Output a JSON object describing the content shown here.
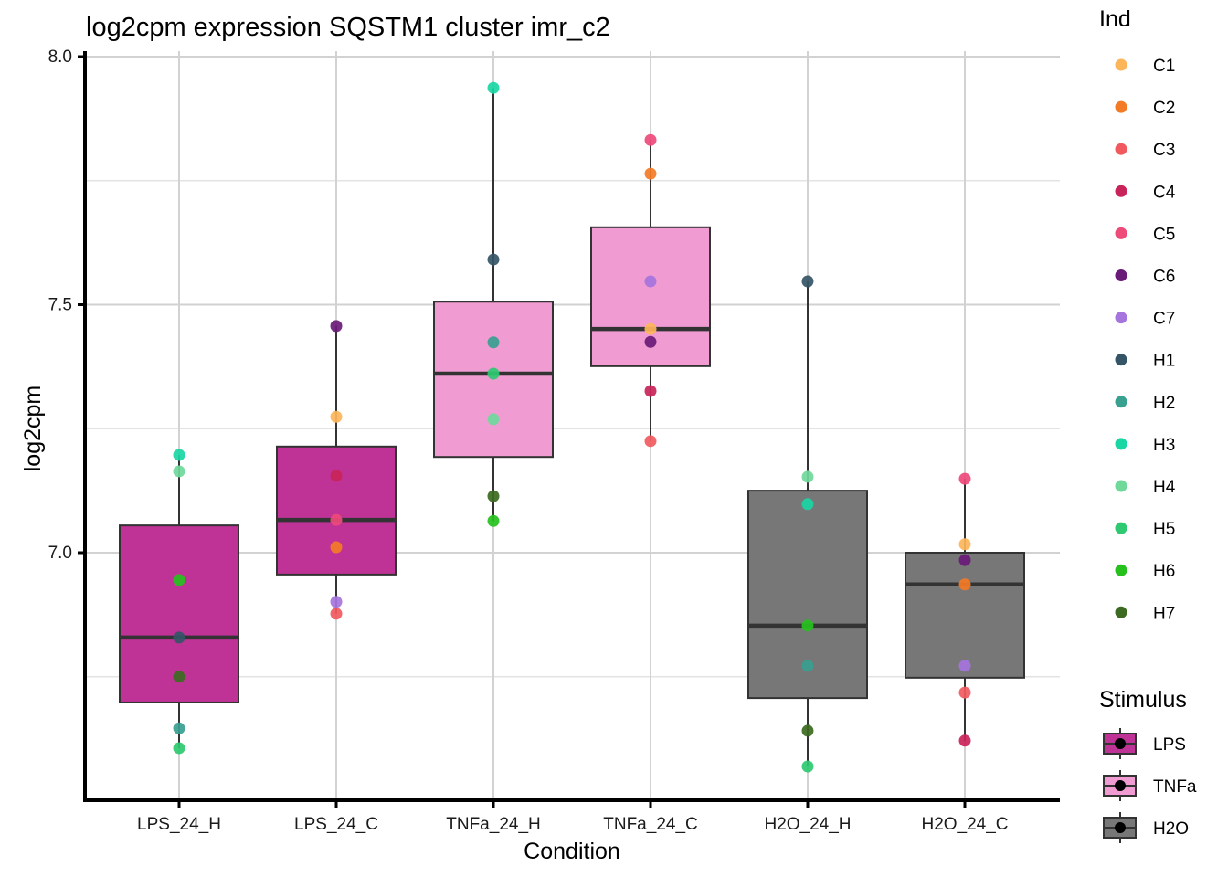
{
  "chart_data": {
    "type": "box",
    "title": "log2cpm expression SQSTM1 cluster imr_c2",
    "xlabel": "Condition",
    "ylabel": "log2cpm",
    "ylim": [
      6.5,
      8.0
    ],
    "yticks": [
      7.0,
      7.5,
      8.0
    ],
    "ytick_labels": [
      "7.0",
      "7.5",
      "8.0"
    ],
    "grid": true,
    "categories": [
      "LPS_24_H",
      "LPS_24_C",
      "TNFa_24_H",
      "TNFa_24_C",
      "H2O_24_H",
      "H2O_24_C"
    ],
    "category_stimulus": [
      "LPS",
      "LPS",
      "TNFa",
      "TNFa",
      "H2O",
      "H2O"
    ],
    "boxes": [
      {
        "category": "LPS_24_H",
        "min": 6.606,
        "q1": 6.698,
        "median": 6.829,
        "q3": 7.055,
        "max": 7.197
      },
      {
        "category": "LPS_24_C",
        "min": 6.877,
        "q1": 6.956,
        "median": 7.066,
        "q3": 7.214,
        "max": 7.457
      },
      {
        "category": "TNFa_24_H",
        "min": 7.064,
        "q1": 7.193,
        "median": 7.361,
        "q3": 7.506,
        "max": 7.937
      },
      {
        "category": "TNFa_24_C",
        "min": 7.225,
        "q1": 7.376,
        "median": 7.451,
        "q3": 7.656,
        "max": 7.832
      },
      {
        "category": "H2O_24_H",
        "min": 6.569,
        "q1": 6.707,
        "median": 6.853,
        "q3": 7.125,
        "max": 7.547
      },
      {
        "category": "H2O_24_C",
        "min": 6.621,
        "q1": 6.748,
        "median": 6.936,
        "q3": 7.0,
        "max": 7.149
      }
    ],
    "points": [
      {
        "category": "LPS_24_H",
        "ind": "H3",
        "value": 7.197
      },
      {
        "category": "LPS_24_H",
        "ind": "H4",
        "value": 7.164
      },
      {
        "category": "LPS_24_H",
        "ind": "H6",
        "value": 6.945
      },
      {
        "category": "LPS_24_H",
        "ind": "H1",
        "value": 6.829
      },
      {
        "category": "LPS_24_H",
        "ind": "H7",
        "value": 6.75
      },
      {
        "category": "LPS_24_H",
        "ind": "H2",
        "value": 6.646
      },
      {
        "category": "LPS_24_H",
        "ind": "H5",
        "value": 6.606
      },
      {
        "category": "LPS_24_C",
        "ind": "C6",
        "value": 7.457
      },
      {
        "category": "LPS_24_C",
        "ind": "C1",
        "value": 7.274
      },
      {
        "category": "LPS_24_C",
        "ind": "C4",
        "value": 7.155
      },
      {
        "category": "LPS_24_C",
        "ind": "C5",
        "value": 7.066
      },
      {
        "category": "LPS_24_C",
        "ind": "C2",
        "value": 7.011
      },
      {
        "category": "LPS_24_C",
        "ind": "C7",
        "value": 6.901
      },
      {
        "category": "LPS_24_C",
        "ind": "C3",
        "value": 6.877
      },
      {
        "category": "TNFa_24_H",
        "ind": "H3",
        "value": 7.937
      },
      {
        "category": "TNFa_24_H",
        "ind": "H1",
        "value": 7.591
      },
      {
        "category": "TNFa_24_H",
        "ind": "H2",
        "value": 7.424
      },
      {
        "category": "TNFa_24_H",
        "ind": "H5",
        "value": 7.361
      },
      {
        "category": "TNFa_24_H",
        "ind": "H4",
        "value": 7.269
      },
      {
        "category": "TNFa_24_H",
        "ind": "H7",
        "value": 7.114
      },
      {
        "category": "TNFa_24_H",
        "ind": "H6",
        "value": 7.064
      },
      {
        "category": "TNFa_24_C",
        "ind": "C5",
        "value": 7.832
      },
      {
        "category": "TNFa_24_C",
        "ind": "C2",
        "value": 7.764
      },
      {
        "category": "TNFa_24_C",
        "ind": "C7",
        "value": 7.547
      },
      {
        "category": "TNFa_24_C",
        "ind": "C1",
        "value": 7.451
      },
      {
        "category": "TNFa_24_C",
        "ind": "C6",
        "value": 7.425
      },
      {
        "category": "TNFa_24_C",
        "ind": "C4",
        "value": 7.326
      },
      {
        "category": "TNFa_24_C",
        "ind": "C3",
        "value": 7.225
      },
      {
        "category": "H2O_24_H",
        "ind": "H1",
        "value": 7.547
      },
      {
        "category": "H2O_24_H",
        "ind": "H4",
        "value": 7.153
      },
      {
        "category": "H2O_24_H",
        "ind": "H3",
        "value": 7.098
      },
      {
        "category": "H2O_24_H",
        "ind": "H6",
        "value": 6.853
      },
      {
        "category": "H2O_24_H",
        "ind": "H2",
        "value": 6.772
      },
      {
        "category": "H2O_24_H",
        "ind": "H7",
        "value": 6.641
      },
      {
        "category": "H2O_24_H",
        "ind": "H5",
        "value": 6.569
      },
      {
        "category": "H2O_24_C",
        "ind": "C5",
        "value": 7.149
      },
      {
        "category": "H2O_24_C",
        "ind": "C1",
        "value": 7.017
      },
      {
        "category": "H2O_24_C",
        "ind": "C6",
        "value": 6.985
      },
      {
        "category": "H2O_24_C",
        "ind": "C2",
        "value": 6.936
      },
      {
        "category": "H2O_24_C",
        "ind": "C7",
        "value": 6.772
      },
      {
        "category": "H2O_24_C",
        "ind": "C3",
        "value": 6.718
      },
      {
        "category": "H2O_24_C",
        "ind": "C4",
        "value": 6.621
      }
    ],
    "legends": [
      {
        "title": "Ind",
        "placement": "right",
        "entries": [
          {
            "label": "C1",
            "color": "#FDB55A"
          },
          {
            "label": "C2",
            "color": "#F47B25"
          },
          {
            "label": "C3",
            "color": "#F05A5F"
          },
          {
            "label": "C4",
            "color": "#C9245A"
          },
          {
            "label": "C5",
            "color": "#EE4A7A"
          },
          {
            "label": "C6",
            "color": "#6A1A78"
          },
          {
            "label": "C7",
            "color": "#A674DD"
          },
          {
            "label": "H1",
            "color": "#345565"
          },
          {
            "label": "H2",
            "color": "#38A08F"
          },
          {
            "label": "H3",
            "color": "#1AD6A4"
          },
          {
            "label": "H4",
            "color": "#6FD99A"
          },
          {
            "label": "H5",
            "color": "#2EC970"
          },
          {
            "label": "H6",
            "color": "#26C11D"
          },
          {
            "label": "H7",
            "color": "#3C6A21"
          }
        ]
      },
      {
        "title": "Stimulus",
        "placement": "bottom-right",
        "entries": [
          {
            "label": "LPS",
            "color": "#BF3396"
          },
          {
            "label": "TNFa",
            "color": "#F09CD3"
          },
          {
            "label": "H2O",
            "color": "#777777"
          }
        ]
      }
    ]
  }
}
